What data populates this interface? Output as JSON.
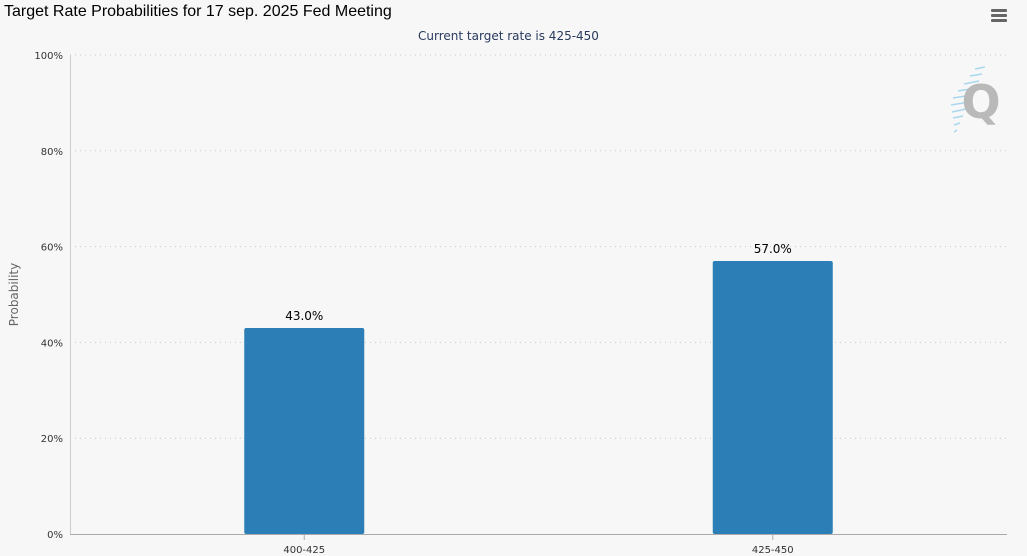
{
  "header": {
    "title": "Target Rate Probabilities for 17 sep. 2025 Fed Meeting",
    "subtitle": "Current target rate is 425-450"
  },
  "watermark": {
    "icon": "q-logo-icon",
    "text": "Q"
  },
  "menu": {
    "icon": "hamburger-menu-icon"
  },
  "chart_data": {
    "type": "bar",
    "title": "Target Rate Probabilities for 17 sep. 2025 Fed Meeting",
    "subtitle": "Current target rate is 425-450",
    "categories": [
      "400-425",
      "425-450"
    ],
    "values": [
      43.0,
      57.0
    ],
    "data_labels": [
      "43.0%",
      "57.0%"
    ],
    "xlabel": "",
    "ylabel": "Probability",
    "ylim": [
      0,
      100
    ],
    "yticks": [
      0,
      20,
      40,
      60,
      80,
      100
    ],
    "ytick_labels": [
      "0%",
      "20%",
      "40%",
      "60%",
      "80%",
      "100%"
    ],
    "grid": true,
    "bar_color": "#2b7eb6",
    "grid_color": "#c8c8c8",
    "legend": "none"
  }
}
